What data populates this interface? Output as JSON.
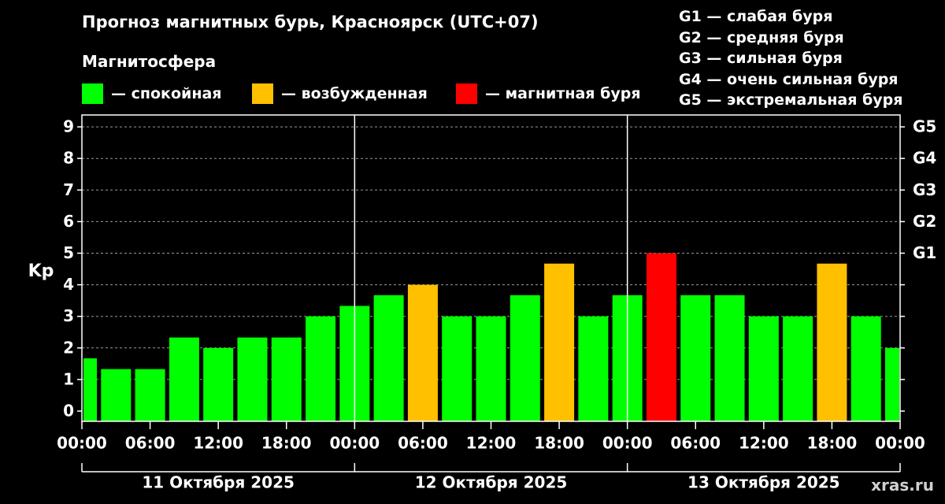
{
  "header": {
    "title": "Прогноз магнитных бурь, Красноярск (UTC+07)",
    "subtitle": "Магнитосфера"
  },
  "legend": [
    {
      "label": "— спокойная",
      "color": "#00ff00",
      "key": "quiet"
    },
    {
      "label": "— возбужденная",
      "color": "#ffc000",
      "key": "active"
    },
    {
      "label": "— магнитная буря",
      "color": "#ff0000",
      "key": "storm"
    }
  ],
  "g_levels": [
    "G1 — слабая буря",
    "G2 — средняя буря",
    "G3 — сильная буря",
    "G4 — очень сильная буря",
    "G5 — экстремальная буря"
  ],
  "watermark": "xras.ru",
  "chart_data": {
    "type": "bar",
    "ylabel": "Kp",
    "ylim": [
      0,
      9
    ],
    "y_ticks": [
      "0",
      "1",
      "2",
      "3",
      "4",
      "5",
      "6",
      "7",
      "8",
      "9"
    ],
    "right_ticks": [
      {
        "label": "G1",
        "value": 5
      },
      {
        "label": "G2",
        "value": 6
      },
      {
        "label": "G3",
        "value": 7
      },
      {
        "label": "G4",
        "value": 8
      },
      {
        "label": "G5",
        "value": 9
      }
    ],
    "x_tick_labels": [
      "00:00",
      "06:00",
      "12:00",
      "18:00",
      "00:00",
      "06:00",
      "12:00",
      "18:00",
      "00:00",
      "06:00",
      "12:00",
      "18:00",
      "00:00"
    ],
    "days": [
      "11 Октября 2025",
      "12 Октября 2025",
      "13 Октября 2025"
    ],
    "grid": true,
    "series": [
      {
        "values": [
          1.67,
          1.33,
          1.33,
          2.33,
          2.0,
          2.33,
          2.33,
          3.0,
          3.33,
          3.67,
          4.0,
          3.0,
          3.0,
          3.67,
          4.67,
          3.0,
          3.67,
          5.0,
          3.67,
          3.67,
          3.0,
          3.0,
          4.67,
          3.0,
          2.0
        ],
        "status": [
          "quiet",
          "quiet",
          "quiet",
          "quiet",
          "quiet",
          "quiet",
          "quiet",
          "quiet",
          "quiet",
          "quiet",
          "active",
          "quiet",
          "quiet",
          "quiet",
          "active",
          "quiet",
          "quiet",
          "storm",
          "quiet",
          "quiet",
          "quiet",
          "quiet",
          "active",
          "quiet",
          "quiet"
        ]
      }
    ]
  }
}
